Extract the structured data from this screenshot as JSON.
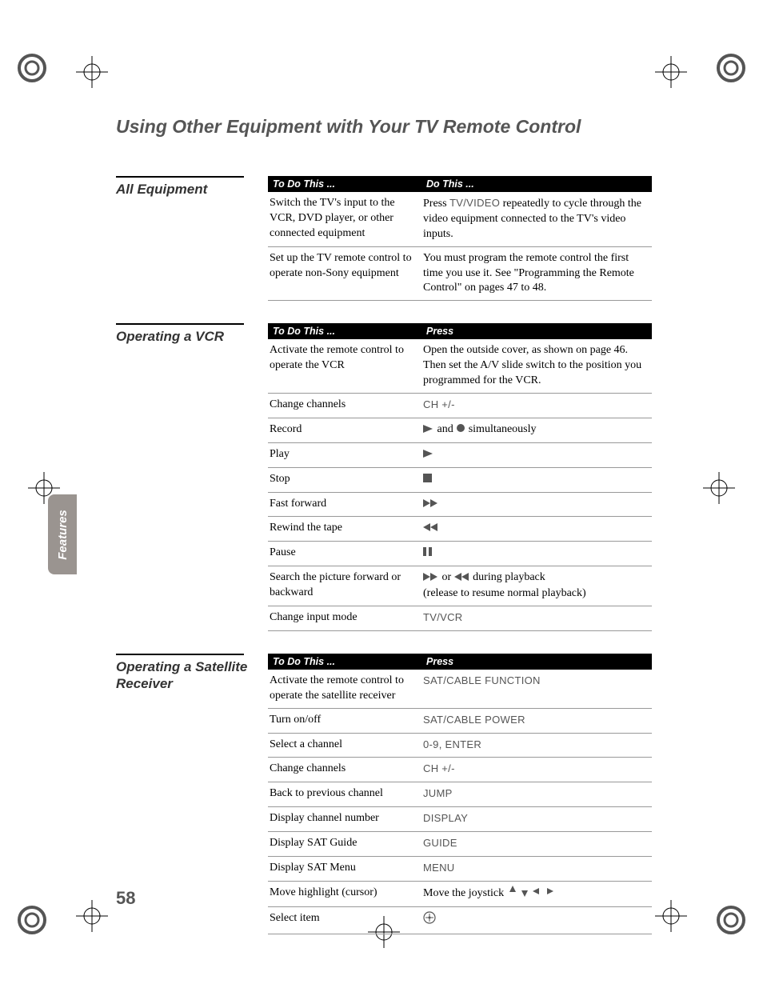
{
  "pageTitle": "Using Other Equipment with Your TV Remote Control",
  "sideTab": "Features",
  "pageNumber": "58",
  "sections": [
    {
      "heading": "All Equipment",
      "headers": [
        "To Do This ...",
        "Do This ..."
      ],
      "rows": [
        {
          "left": "Switch the TV's input to the VCR, DVD player, or other connected equipment",
          "right": [
            {
              "t": "text",
              "v": "Press "
            },
            {
              "t": "sc",
              "v": "TV/VIDEO"
            },
            {
              "t": "text",
              "v": " repeatedly to cycle through the video equipment connected to the TV's video inputs."
            }
          ]
        },
        {
          "left": "Set up the TV remote control to operate non-Sony equipment",
          "right": [
            {
              "t": "text",
              "v": "You must program the remote control the first time you use it. See \"Programming the Remote Control\" on pages 47 to 48."
            }
          ]
        }
      ]
    },
    {
      "heading": "Operating a VCR",
      "headers": [
        "To Do This ...",
        "Press"
      ],
      "rows": [
        {
          "left": "Activate the remote control to operate the VCR",
          "right": [
            {
              "t": "text",
              "v": "Open the outside cover, as shown on page 46. Then set the A/V slide switch to the position you programmed for the VCR."
            }
          ]
        },
        {
          "left": "Change channels",
          "right": [
            {
              "t": "sc",
              "v": "CH +/-"
            }
          ]
        },
        {
          "left": "Record",
          "right": [
            {
              "t": "icon",
              "v": "play"
            },
            {
              "t": "text",
              "v": " and "
            },
            {
              "t": "icon",
              "v": "rec"
            },
            {
              "t": "text",
              "v": " simultaneously"
            }
          ]
        },
        {
          "left": "Play",
          "right": [
            {
              "t": "icon",
              "v": "play"
            }
          ]
        },
        {
          "left": "Stop",
          "right": [
            {
              "t": "icon",
              "v": "stop"
            }
          ]
        },
        {
          "left": "Fast forward",
          "right": [
            {
              "t": "icon",
              "v": "ff"
            }
          ]
        },
        {
          "left": "Rewind the tape",
          "right": [
            {
              "t": "icon",
              "v": "rew"
            }
          ]
        },
        {
          "left": "Pause",
          "right": [
            {
              "t": "icon",
              "v": "pause"
            }
          ]
        },
        {
          "left": "Search the picture forward or backward",
          "right": [
            {
              "t": "icon",
              "v": "ff"
            },
            {
              "t": "text",
              "v": " or "
            },
            {
              "t": "icon",
              "v": "rew"
            },
            {
              "t": "text",
              "v": " during playback"
            },
            {
              "t": "br"
            },
            {
              "t": "text",
              "v": "(release to resume normal playback)"
            }
          ]
        },
        {
          "left": "Change input mode",
          "right": [
            {
              "t": "sc",
              "v": "TV/VCR"
            }
          ]
        }
      ]
    },
    {
      "heading": "Operating a Satellite Receiver",
      "headers": [
        "To Do This ...",
        "Press"
      ],
      "rows": [
        {
          "left": "Activate the remote control to operate the satellite receiver",
          "right": [
            {
              "t": "sc",
              "v": "SAT/CABLE FUNCTION"
            }
          ]
        },
        {
          "left": "Turn on/off",
          "right": [
            {
              "t": "sc",
              "v": "SAT/CABLE POWER"
            }
          ]
        },
        {
          "left": "Select a channel",
          "right": [
            {
              "t": "sc",
              "v": "0-9, ENTER"
            }
          ]
        },
        {
          "left": "Change channels",
          "right": [
            {
              "t": "sc",
              "v": "CH +/-"
            }
          ]
        },
        {
          "left": "Back to previous channel",
          "right": [
            {
              "t": "sc",
              "v": "JUMP"
            }
          ]
        },
        {
          "left": "Display channel number",
          "right": [
            {
              "t": "sc",
              "v": "DISPLAY"
            }
          ]
        },
        {
          "left": "Display SAT Guide",
          "right": [
            {
              "t": "sc",
              "v": "GUIDE"
            }
          ]
        },
        {
          "left": "Display SAT Menu",
          "right": [
            {
              "t": "sc",
              "v": "MENU"
            }
          ]
        },
        {
          "left": "Move highlight (cursor)",
          "right": [
            {
              "t": "text",
              "v": "Move the joystick "
            },
            {
              "t": "icon",
              "v": "arrows"
            }
          ]
        },
        {
          "left": "Select item",
          "right": [
            {
              "t": "icon",
              "v": "enter"
            }
          ]
        }
      ]
    }
  ]
}
